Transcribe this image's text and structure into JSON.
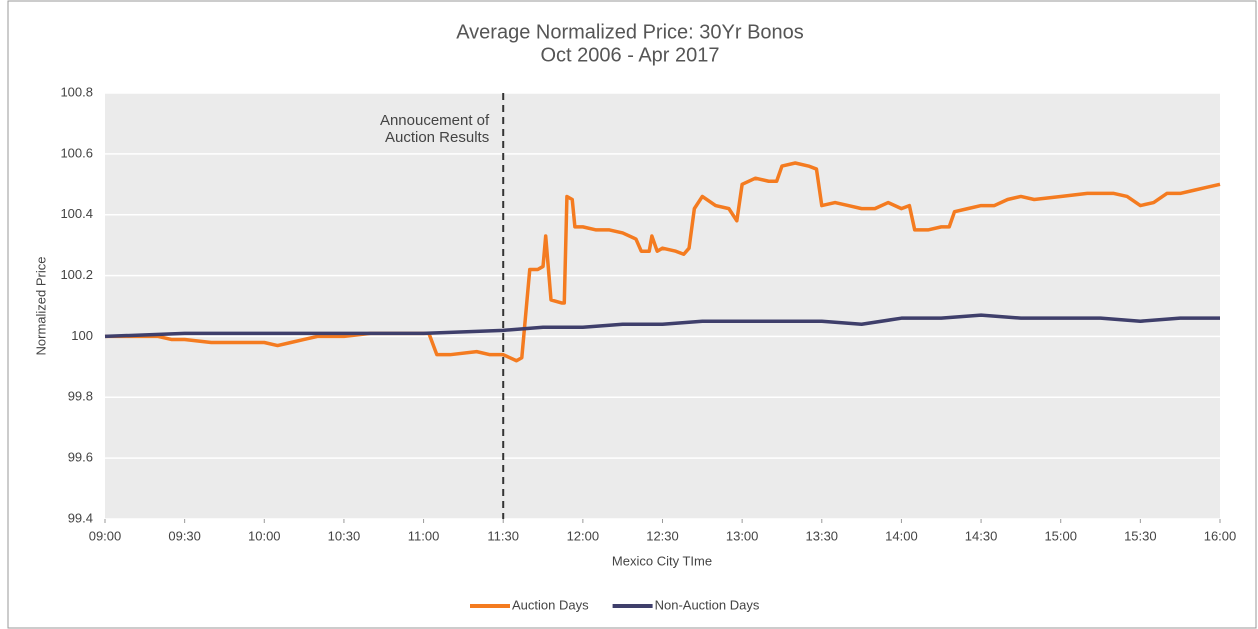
{
  "chart_data": {
    "type": "line",
    "title": "Average Normalized Price: 30Yr Bonos",
    "subtitle": "Oct 2006 - Apr 2017",
    "xlabel": "Mexico City TIme",
    "ylabel": "Normalized Price",
    "xlim": [
      "09:00",
      "16:00"
    ],
    "xticks": [
      "09:00",
      "09:30",
      "10:00",
      "10:30",
      "11:00",
      "11:30",
      "12:00",
      "12:30",
      "13:00",
      "13:30",
      "14:00",
      "14:30",
      "15:00",
      "15:30",
      "16:00"
    ],
    "ylim": [
      99.4,
      100.8
    ],
    "yticks": [
      99.4,
      99.6,
      99.8,
      100,
      100.2,
      100.4,
      100.6,
      100.8
    ],
    "grid": true,
    "legend": "bottom",
    "annotations": [
      {
        "text": [
          "Annoucement of",
          "Auction Results"
        ],
        "x": "11:30"
      }
    ],
    "series": [
      {
        "name": "Auction Days",
        "color": "#f47b20",
        "x": [
          "09:00",
          "09:10",
          "09:20",
          "09:25",
          "09:30",
          "09:40",
          "09:50",
          "10:00",
          "10:05",
          "10:10",
          "10:15",
          "10:20",
          "10:30",
          "10:40",
          "10:50",
          "11:00",
          "11:02",
          "11:05",
          "11:10",
          "11:20",
          "11:25",
          "11:30",
          "11:35",
          "11:37",
          "11:40",
          "11:43",
          "11:45",
          "11:46",
          "11:48",
          "11:52",
          "11:53",
          "11:54",
          "11:56",
          "11:57",
          "12:00",
          "12:05",
          "12:10",
          "12:15",
          "12:20",
          "12:22",
          "12:25",
          "12:26",
          "12:28",
          "12:30",
          "12:35",
          "12:38",
          "12:40",
          "12:42",
          "12:45",
          "12:50",
          "12:55",
          "12:58",
          "13:00",
          "13:05",
          "13:10",
          "13:13",
          "13:15",
          "13:20",
          "13:25",
          "13:28",
          "13:30",
          "13:35",
          "13:40",
          "13:45",
          "13:50",
          "13:55",
          "14:00",
          "14:03",
          "14:05",
          "14:10",
          "14:15",
          "14:18",
          "14:20",
          "14:25",
          "14:30",
          "14:35",
          "14:40",
          "14:45",
          "14:50",
          "15:00",
          "15:10",
          "15:20",
          "15:25",
          "15:30",
          "15:35",
          "15:40",
          "15:45",
          "15:50",
          "15:55",
          "16:00"
        ],
        "values": [
          100.0,
          100.0,
          100.0,
          99.99,
          99.99,
          99.98,
          99.98,
          99.98,
          99.97,
          99.98,
          99.99,
          100.0,
          100.0,
          100.01,
          100.01,
          100.01,
          100.01,
          99.94,
          99.94,
          99.95,
          99.94,
          99.94,
          99.92,
          99.93,
          100.22,
          100.22,
          100.23,
          100.33,
          100.12,
          100.11,
          100.11,
          100.46,
          100.45,
          100.36,
          100.36,
          100.35,
          100.35,
          100.34,
          100.32,
          100.28,
          100.28,
          100.33,
          100.28,
          100.29,
          100.28,
          100.27,
          100.29,
          100.42,
          100.46,
          100.43,
          100.42,
          100.38,
          100.5,
          100.52,
          100.51,
          100.51,
          100.56,
          100.57,
          100.56,
          100.55,
          100.43,
          100.44,
          100.43,
          100.42,
          100.42,
          100.44,
          100.42,
          100.43,
          100.35,
          100.35,
          100.36,
          100.36,
          100.41,
          100.42,
          100.43,
          100.43,
          100.45,
          100.46,
          100.45,
          100.46,
          100.47,
          100.47,
          100.46,
          100.43,
          100.44,
          100.47,
          100.47,
          100.48,
          100.49,
          100.5
        ]
      },
      {
        "name": "Non-Auction Days",
        "color": "#3f3f6b",
        "x": [
          "09:00",
          "09:30",
          "10:00",
          "10:30",
          "11:00",
          "11:30",
          "11:45",
          "12:00",
          "12:15",
          "12:30",
          "12:45",
          "13:00",
          "13:15",
          "13:30",
          "13:45",
          "14:00",
          "14:15",
          "14:30",
          "14:45",
          "15:00",
          "15:15",
          "15:30",
          "15:45",
          "16:00"
        ],
        "values": [
          100.0,
          100.01,
          100.01,
          100.01,
          100.01,
          100.02,
          100.03,
          100.03,
          100.04,
          100.04,
          100.05,
          100.05,
          100.05,
          100.05,
          100.04,
          100.06,
          100.06,
          100.07,
          100.06,
          100.06,
          100.06,
          100.05,
          100.06,
          100.06
        ]
      }
    ]
  }
}
